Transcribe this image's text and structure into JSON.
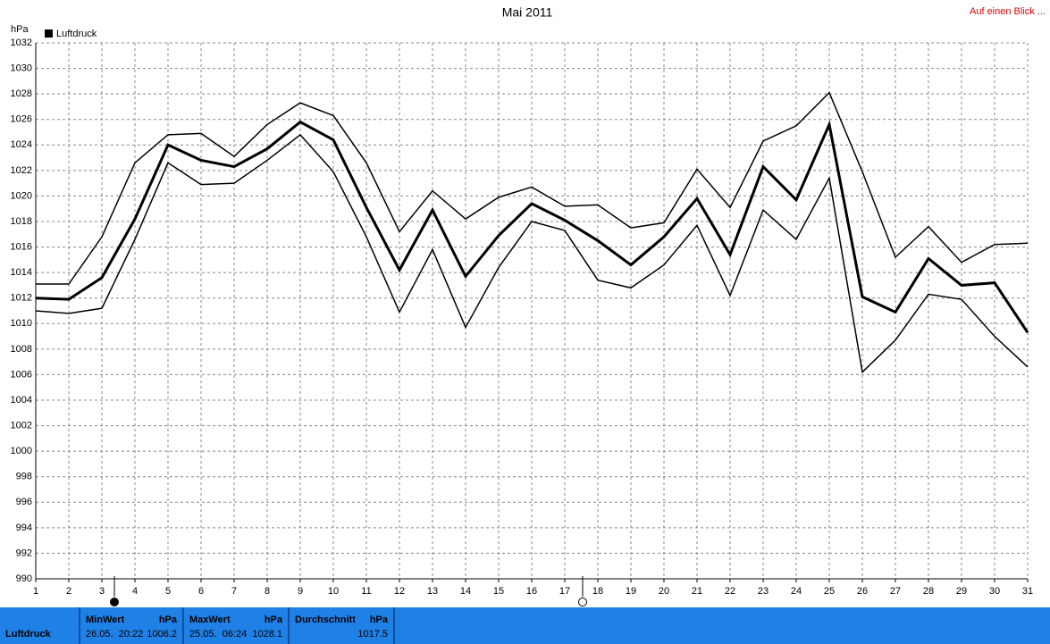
{
  "chart_data": {
    "type": "line",
    "title": "Mai 2011",
    "y_label": "hPa",
    "x": [
      1,
      2,
      3,
      4,
      5,
      6,
      7,
      8,
      9,
      10,
      11,
      12,
      13,
      14,
      15,
      16,
      17,
      18,
      19,
      20,
      21,
      22,
      23,
      24,
      25,
      26,
      27,
      28,
      29,
      30,
      31
    ],
    "xlim": [
      1,
      31
    ],
    "xticks": [
      1,
      2,
      3,
      4,
      5,
      6,
      7,
      8,
      9,
      10,
      11,
      12,
      13,
      14,
      15,
      16,
      17,
      18,
      19,
      20,
      21,
      22,
      23,
      24,
      25,
      26,
      27,
      28,
      29,
      30,
      31
    ],
    "ylim": [
      990,
      1032
    ],
    "yticks": [
      990,
      992,
      994,
      996,
      998,
      1000,
      1002,
      1004,
      1006,
      1008,
      1010,
      1012,
      1014,
      1016,
      1018,
      1020,
      1022,
      1024,
      1026,
      1028,
      1030,
      1032
    ],
    "grid": true,
    "series": [
      {
        "color": "#000000",
        "width": 1.5,
        "values": [
          1013.1,
          1013.1,
          1016.8,
          1022.6,
          1024.8,
          1024.9,
          1023.1,
          1025.6,
          1027.3,
          1026.3,
          1022.6,
          1017.2,
          1020.4,
          1018.2,
          1019.9,
          1020.7,
          1019.2,
          1019.3,
          1017.5,
          1017.9,
          1022.1,
          1019.1,
          1024.3,
          1025.5,
          1028.1,
          1021.9,
          1015.2,
          1017.6,
          1014.8,
          1016.2,
          1016.3
        ]
      },
      {
        "name": "Luftdruck",
        "color": "#000000",
        "width": 3,
        "values": [
          1012.0,
          1011.9,
          1013.6,
          1018.2,
          1024.0,
          1022.8,
          1022.3,
          1023.7,
          1025.8,
          1024.4,
          1019.1,
          1014.2,
          1018.9,
          1013.7,
          1016.9,
          1019.4,
          1018.1,
          1016.5,
          1014.6,
          1016.8,
          1019.8,
          1015.4,
          1022.3,
          1019.7,
          1025.6,
          1012.1,
          1010.9,
          1015.1,
          1013.0,
          1013.2,
          1009.3
        ]
      },
      {
        "color": "#000000",
        "width": 1.5,
        "values": [
          1011.0,
          1010.8,
          1011.2,
          1016.6,
          1022.6,
          1020.9,
          1021.0,
          1022.8,
          1024.8,
          1021.9,
          1016.8,
          1010.9,
          1015.8,
          1009.7,
          1014.4,
          1018.0,
          1017.3,
          1013.4,
          1012.8,
          1014.6,
          1017.7,
          1012.2,
          1018.9,
          1016.6,
          1021.4,
          1006.2,
          1008.7,
          1012.3,
          1011.9,
          1009.0,
          1006.6
        ]
      }
    ]
  },
  "link": "Auf einen Blick ...",
  "footer": {
    "label": "Luftdruck",
    "cells": [
      {
        "title": "MinWert",
        "unit": "hPa",
        "time": "26.05.  20:22",
        "value": 1006.2
      },
      {
        "title": "MaxWert",
        "unit": "hPa",
        "time": "25.05.  06:24",
        "value": 1028.1
      },
      {
        "title": "Durchschnitt",
        "unit": "hPa",
        "value": 1017.5
      }
    ]
  }
}
